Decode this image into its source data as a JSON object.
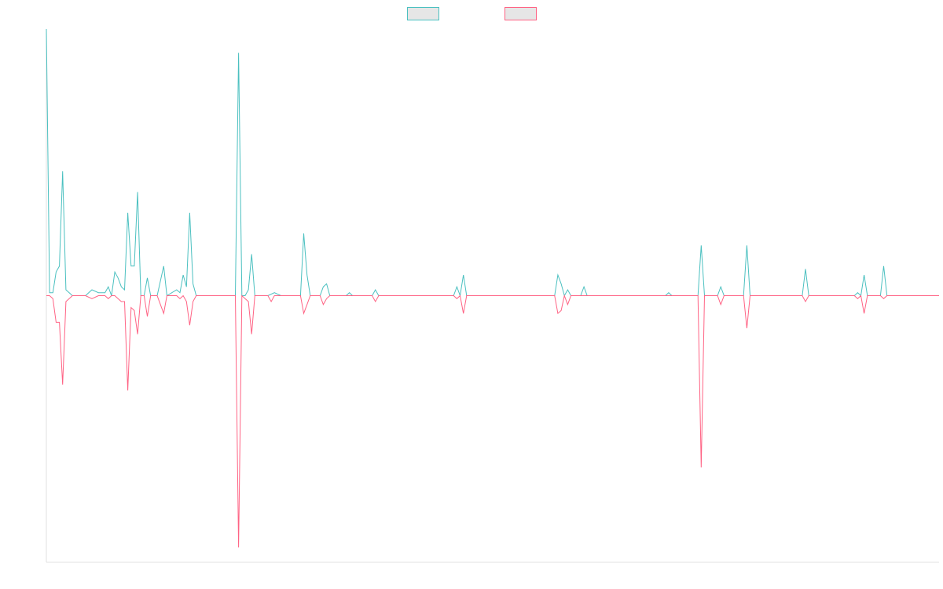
{
  "chart_data": {
    "type": "line",
    "title": "",
    "xlabel": "",
    "ylabel": "",
    "grid": false,
    "legend_position": "top-center",
    "x_range": [
      0,
      274
    ],
    "ylim": [
      -0.9,
      0.9
    ],
    "series": [
      {
        "key": "teal",
        "color": "#4bc0c0",
        "legend_fill": "#e6e6e6",
        "points": [
          [
            0,
            0.9
          ],
          [
            1,
            0.01
          ],
          [
            2,
            0.01
          ],
          [
            3,
            0.08
          ],
          [
            4,
            0.1
          ],
          [
            5,
            0.42
          ],
          [
            6,
            0.02
          ],
          [
            8,
            0
          ],
          [
            10,
            0
          ],
          [
            12,
            0
          ],
          [
            14,
            0.02
          ],
          [
            16,
            0.01
          ],
          [
            18,
            0.01
          ],
          [
            19,
            0.03
          ],
          [
            20,
            0
          ],
          [
            21,
            0.08
          ],
          [
            22,
            0.06
          ],
          [
            23,
            0.03
          ],
          [
            24,
            0.02
          ],
          [
            25,
            0.28
          ],
          [
            26,
            0.1
          ],
          [
            27,
            0.1
          ],
          [
            28,
            0.35
          ],
          [
            29,
            0
          ],
          [
            30,
            0
          ],
          [
            31,
            0.06
          ],
          [
            32,
            0
          ],
          [
            34,
            0
          ],
          [
            36,
            0.1
          ],
          [
            37,
            0
          ],
          [
            40,
            0.02
          ],
          [
            41,
            0.01
          ],
          [
            42,
            0.07
          ],
          [
            43,
            0.03
          ],
          [
            44,
            0.28
          ],
          [
            45,
            0.04
          ],
          [
            46,
            0
          ],
          [
            58,
            0
          ],
          [
            59,
            0.82
          ],
          [
            60,
            0
          ],
          [
            61,
            0
          ],
          [
            62,
            0.02
          ],
          [
            63,
            0.14
          ],
          [
            64,
            0
          ],
          [
            68,
            0
          ],
          [
            70,
            0.01
          ],
          [
            72,
            0
          ],
          [
            78,
            0
          ],
          [
            79,
            0.21
          ],
          [
            80,
            0.07
          ],
          [
            81,
            0
          ],
          [
            84,
            0
          ],
          [
            85,
            0.03
          ],
          [
            86,
            0.04
          ],
          [
            87,
            0
          ],
          [
            92,
            0
          ],
          [
            93,
            0.01
          ],
          [
            94,
            0
          ],
          [
            98,
            0
          ],
          [
            99,
            0
          ],
          [
            100,
            0
          ],
          [
            101,
            0.02
          ],
          [
            102,
            0
          ],
          [
            106,
            0
          ],
          [
            108,
            0
          ],
          [
            109,
            0
          ],
          [
            110,
            0
          ],
          [
            111,
            0
          ],
          [
            112,
            0
          ],
          [
            125,
            0
          ],
          [
            126,
            0.03
          ],
          [
            127,
            0
          ],
          [
            128,
            0.07
          ],
          [
            129,
            0
          ],
          [
            135,
            0
          ],
          [
            138,
            0
          ],
          [
            156,
            0
          ],
          [
            157,
            0.07
          ],
          [
            158,
            0.04
          ],
          [
            159,
            0
          ],
          [
            160,
            0.02
          ],
          [
            161,
            0
          ],
          [
            164,
            0
          ],
          [
            165,
            0.03
          ],
          [
            166,
            0
          ],
          [
            190,
            0
          ],
          [
            191,
            0.01
          ],
          [
            192,
            0
          ],
          [
            198,
            0
          ],
          [
            199,
            0
          ],
          [
            200,
            0
          ],
          [
            201,
            0.17
          ],
          [
            202,
            0
          ],
          [
            206,
            0
          ],
          [
            207,
            0.03
          ],
          [
            208,
            0
          ],
          [
            214,
            0
          ],
          [
            215,
            0.17
          ],
          [
            216,
            0
          ],
          [
            222,
            0
          ],
          [
            232,
            0
          ],
          [
            233,
            0.09
          ],
          [
            234,
            0
          ],
          [
            248,
            0
          ],
          [
            249,
            0.01
          ],
          [
            250,
            0
          ],
          [
            251,
            0.07
          ],
          [
            252,
            0
          ],
          [
            256,
            0
          ],
          [
            257,
            0.1
          ],
          [
            258,
            0
          ],
          [
            261,
            0
          ],
          [
            274,
            0
          ]
        ]
      },
      {
        "key": "pink",
        "color": "#ff6384",
        "legend_fill": "#e6e6e6",
        "points": [
          [
            0,
            0
          ],
          [
            1,
            0
          ],
          [
            2,
            -0.01
          ],
          [
            3,
            -0.09
          ],
          [
            4,
            -0.09
          ],
          [
            5,
            -0.3
          ],
          [
            6,
            -0.02
          ],
          [
            8,
            0
          ],
          [
            12,
            0
          ],
          [
            14,
            -0.01
          ],
          [
            16,
            0
          ],
          [
            18,
            0
          ],
          [
            19,
            -0.01
          ],
          [
            20,
            0
          ],
          [
            21,
            0
          ],
          [
            22,
            -0.01
          ],
          [
            23,
            -0.02
          ],
          [
            24,
            -0.02
          ],
          [
            25,
            -0.32
          ],
          [
            26,
            -0.04
          ],
          [
            27,
            -0.05
          ],
          [
            28,
            -0.13
          ],
          [
            29,
            0
          ],
          [
            30,
            0
          ],
          [
            31,
            -0.07
          ],
          [
            32,
            0
          ],
          [
            34,
            0
          ],
          [
            36,
            -0.06
          ],
          [
            37,
            0
          ],
          [
            40,
            0
          ],
          [
            41,
            -0.01
          ],
          [
            42,
            0
          ],
          [
            43,
            -0.02
          ],
          [
            44,
            -0.1
          ],
          [
            45,
            -0.02
          ],
          [
            46,
            0
          ],
          [
            58,
            0
          ],
          [
            59,
            -0.85
          ],
          [
            60,
            0
          ],
          [
            61,
            -0.01
          ],
          [
            62,
            -0.02
          ],
          [
            63,
            -0.13
          ],
          [
            64,
            0
          ],
          [
            68,
            0
          ],
          [
            69,
            -0.02
          ],
          [
            70,
            0
          ],
          [
            72,
            0
          ],
          [
            78,
            0
          ],
          [
            79,
            -0.06
          ],
          [
            80,
            -0.03
          ],
          [
            81,
            0
          ],
          [
            84,
            0
          ],
          [
            85,
            -0.03
          ],
          [
            86,
            -0.01
          ],
          [
            87,
            0
          ],
          [
            92,
            0
          ],
          [
            93,
            0
          ],
          [
            94,
            0
          ],
          [
            98,
            0
          ],
          [
            99,
            0
          ],
          [
            100,
            0
          ],
          [
            101,
            -0.02
          ],
          [
            102,
            0
          ],
          [
            106,
            0
          ],
          [
            108,
            0
          ],
          [
            109,
            0
          ],
          [
            110,
            0
          ],
          [
            111,
            0
          ],
          [
            112,
            0
          ],
          [
            125,
            0
          ],
          [
            126,
            -0.01
          ],
          [
            127,
            0
          ],
          [
            128,
            -0.06
          ],
          [
            129,
            0
          ],
          [
            135,
            0
          ],
          [
            138,
            0
          ],
          [
            156,
            0
          ],
          [
            157,
            -0.06
          ],
          [
            158,
            -0.05
          ],
          [
            159,
            0
          ],
          [
            160,
            -0.03
          ],
          [
            161,
            0
          ],
          [
            164,
            0
          ],
          [
            165,
            0
          ],
          [
            166,
            0
          ],
          [
            190,
            0
          ],
          [
            191,
            0
          ],
          [
            192,
            0
          ],
          [
            198,
            0
          ],
          [
            199,
            0
          ],
          [
            200,
            0
          ],
          [
            201,
            -0.58
          ],
          [
            202,
            0
          ],
          [
            206,
            0
          ],
          [
            207,
            -0.03
          ],
          [
            208,
            0
          ],
          [
            214,
            0
          ],
          [
            215,
            -0.11
          ],
          [
            216,
            0
          ],
          [
            222,
            0
          ],
          [
            232,
            0
          ],
          [
            233,
            -0.02
          ],
          [
            234,
            0
          ],
          [
            248,
            0
          ],
          [
            249,
            -0.01
          ],
          [
            250,
            0
          ],
          [
            251,
            -0.06
          ],
          [
            252,
            0
          ],
          [
            256,
            0
          ],
          [
            257,
            -0.01
          ],
          [
            258,
            0
          ],
          [
            261,
            0
          ],
          [
            274,
            0
          ]
        ]
      }
    ]
  }
}
